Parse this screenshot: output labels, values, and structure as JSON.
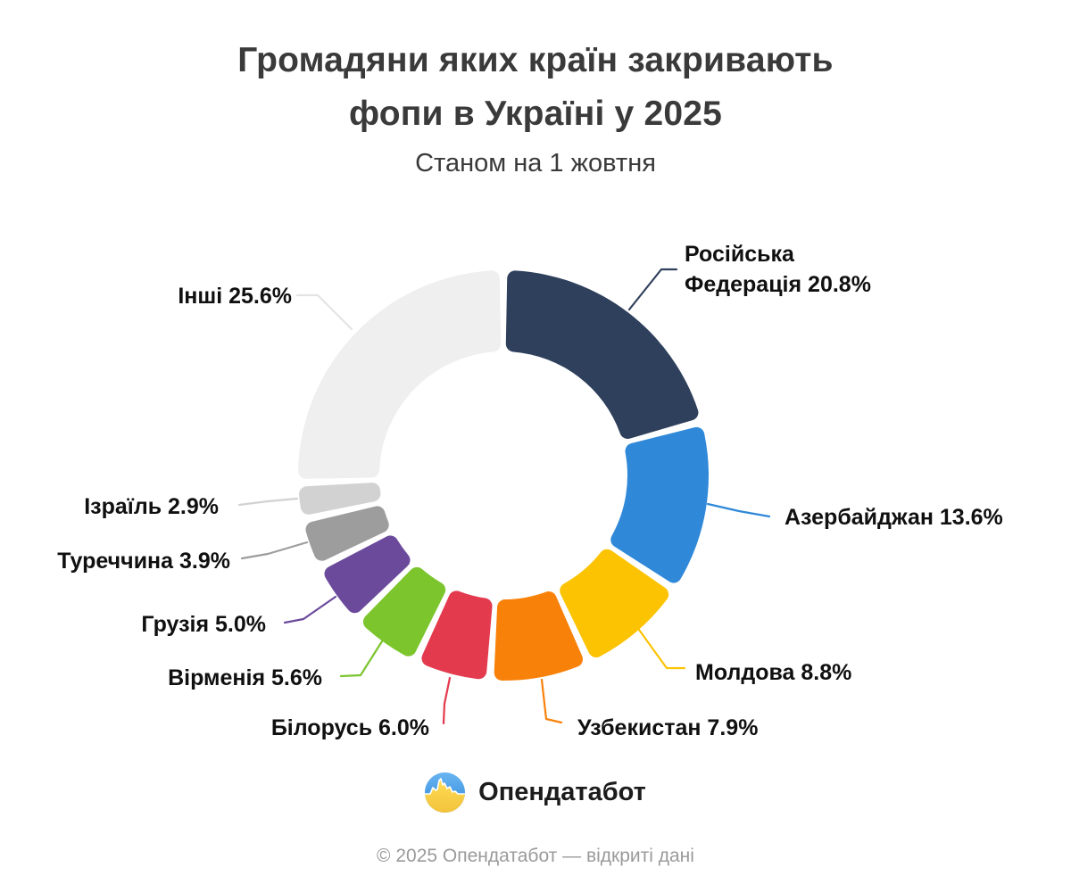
{
  "header": {
    "title_lines": [
      "Громадяни яких країн закривають",
      "фопи в Україні у 2025"
    ],
    "subtitle": "Станом на 1 жовтня"
  },
  "chart_data": {
    "type": "pie",
    "subtype": "donut",
    "title": "Громадяни яких країн закривають фопи в Україні у 2025",
    "subtitle": "Станом на 1 жовтня",
    "unit": "%",
    "start_angle_deg": 0,
    "direction": "clockwise",
    "legend_position": "callout-labels",
    "slices": [
      {
        "label": "Російська Федерація",
        "value": 20.8,
        "color": "#2F405C"
      },
      {
        "label": "Азербайджан",
        "value": 13.6,
        "color": "#2F88D8"
      },
      {
        "label": "Молдова",
        "value": 8.8,
        "color": "#FCC303"
      },
      {
        "label": "Узбекистан",
        "value": 7.9,
        "color": "#F8810A"
      },
      {
        "label": "Білорусь",
        "value": 6.0,
        "color": "#E33A4E"
      },
      {
        "label": "Вірменія",
        "value": 5.6,
        "color": "#7CC52D"
      },
      {
        "label": "Грузія",
        "value": 5.0,
        "color": "#6B4A9C"
      },
      {
        "label": "Туреччина",
        "value": 3.9,
        "color": "#9D9D9D"
      },
      {
        "label": "Ізраїль",
        "value": 2.9,
        "color": "#D2D2D2"
      },
      {
        "label": "Інші",
        "value": 25.6,
        "color": "#EFEFEF"
      }
    ]
  },
  "footer": {
    "brand": "Опендатабот",
    "copyright": "© 2025 Опендатабот — відкриті дані"
  }
}
